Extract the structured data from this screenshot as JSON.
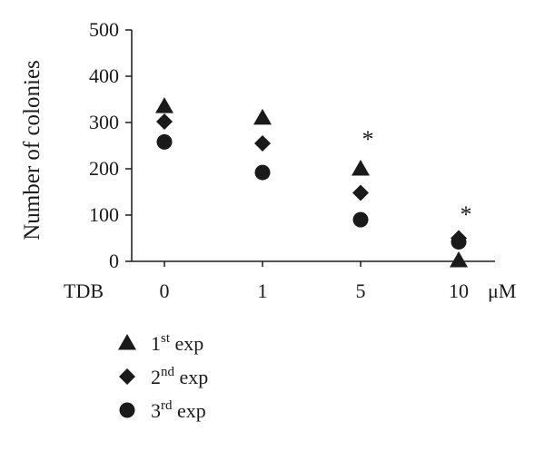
{
  "chart_data": {
    "type": "scatter",
    "ylabel": "Number of colonies",
    "ylim": [
      0,
      500
    ],
    "yticks": [
      0,
      100,
      200,
      300,
      400,
      500
    ],
    "x_prefix": "TDB",
    "x_unit": "μM",
    "categories": [
      "0",
      "1",
      "5",
      "10"
    ],
    "series": [
      {
        "marker": "triangle",
        "values": [
          335,
          310,
          200,
          2
        ]
      },
      {
        "marker": "diamond",
        "values": [
          302,
          255,
          148,
          50
        ]
      },
      {
        "marker": "circle",
        "values": [
          258,
          192,
          90,
          42
        ]
      }
    ],
    "annotations": [
      {
        "category": "5",
        "text": "*",
        "y": 282
      },
      {
        "category": "10",
        "text": "*",
        "y": 120
      }
    ],
    "legend": [
      {
        "marker": "triangle",
        "main": "1",
        "sup": "st",
        "tail": " exp"
      },
      {
        "marker": "diamond",
        "main": "2",
        "sup": "nd",
        "tail": " exp"
      },
      {
        "marker": "circle",
        "main": "3",
        "sup": "rd",
        "tail": " exp"
      }
    ],
    "marker_color": "#1a1a1a"
  }
}
